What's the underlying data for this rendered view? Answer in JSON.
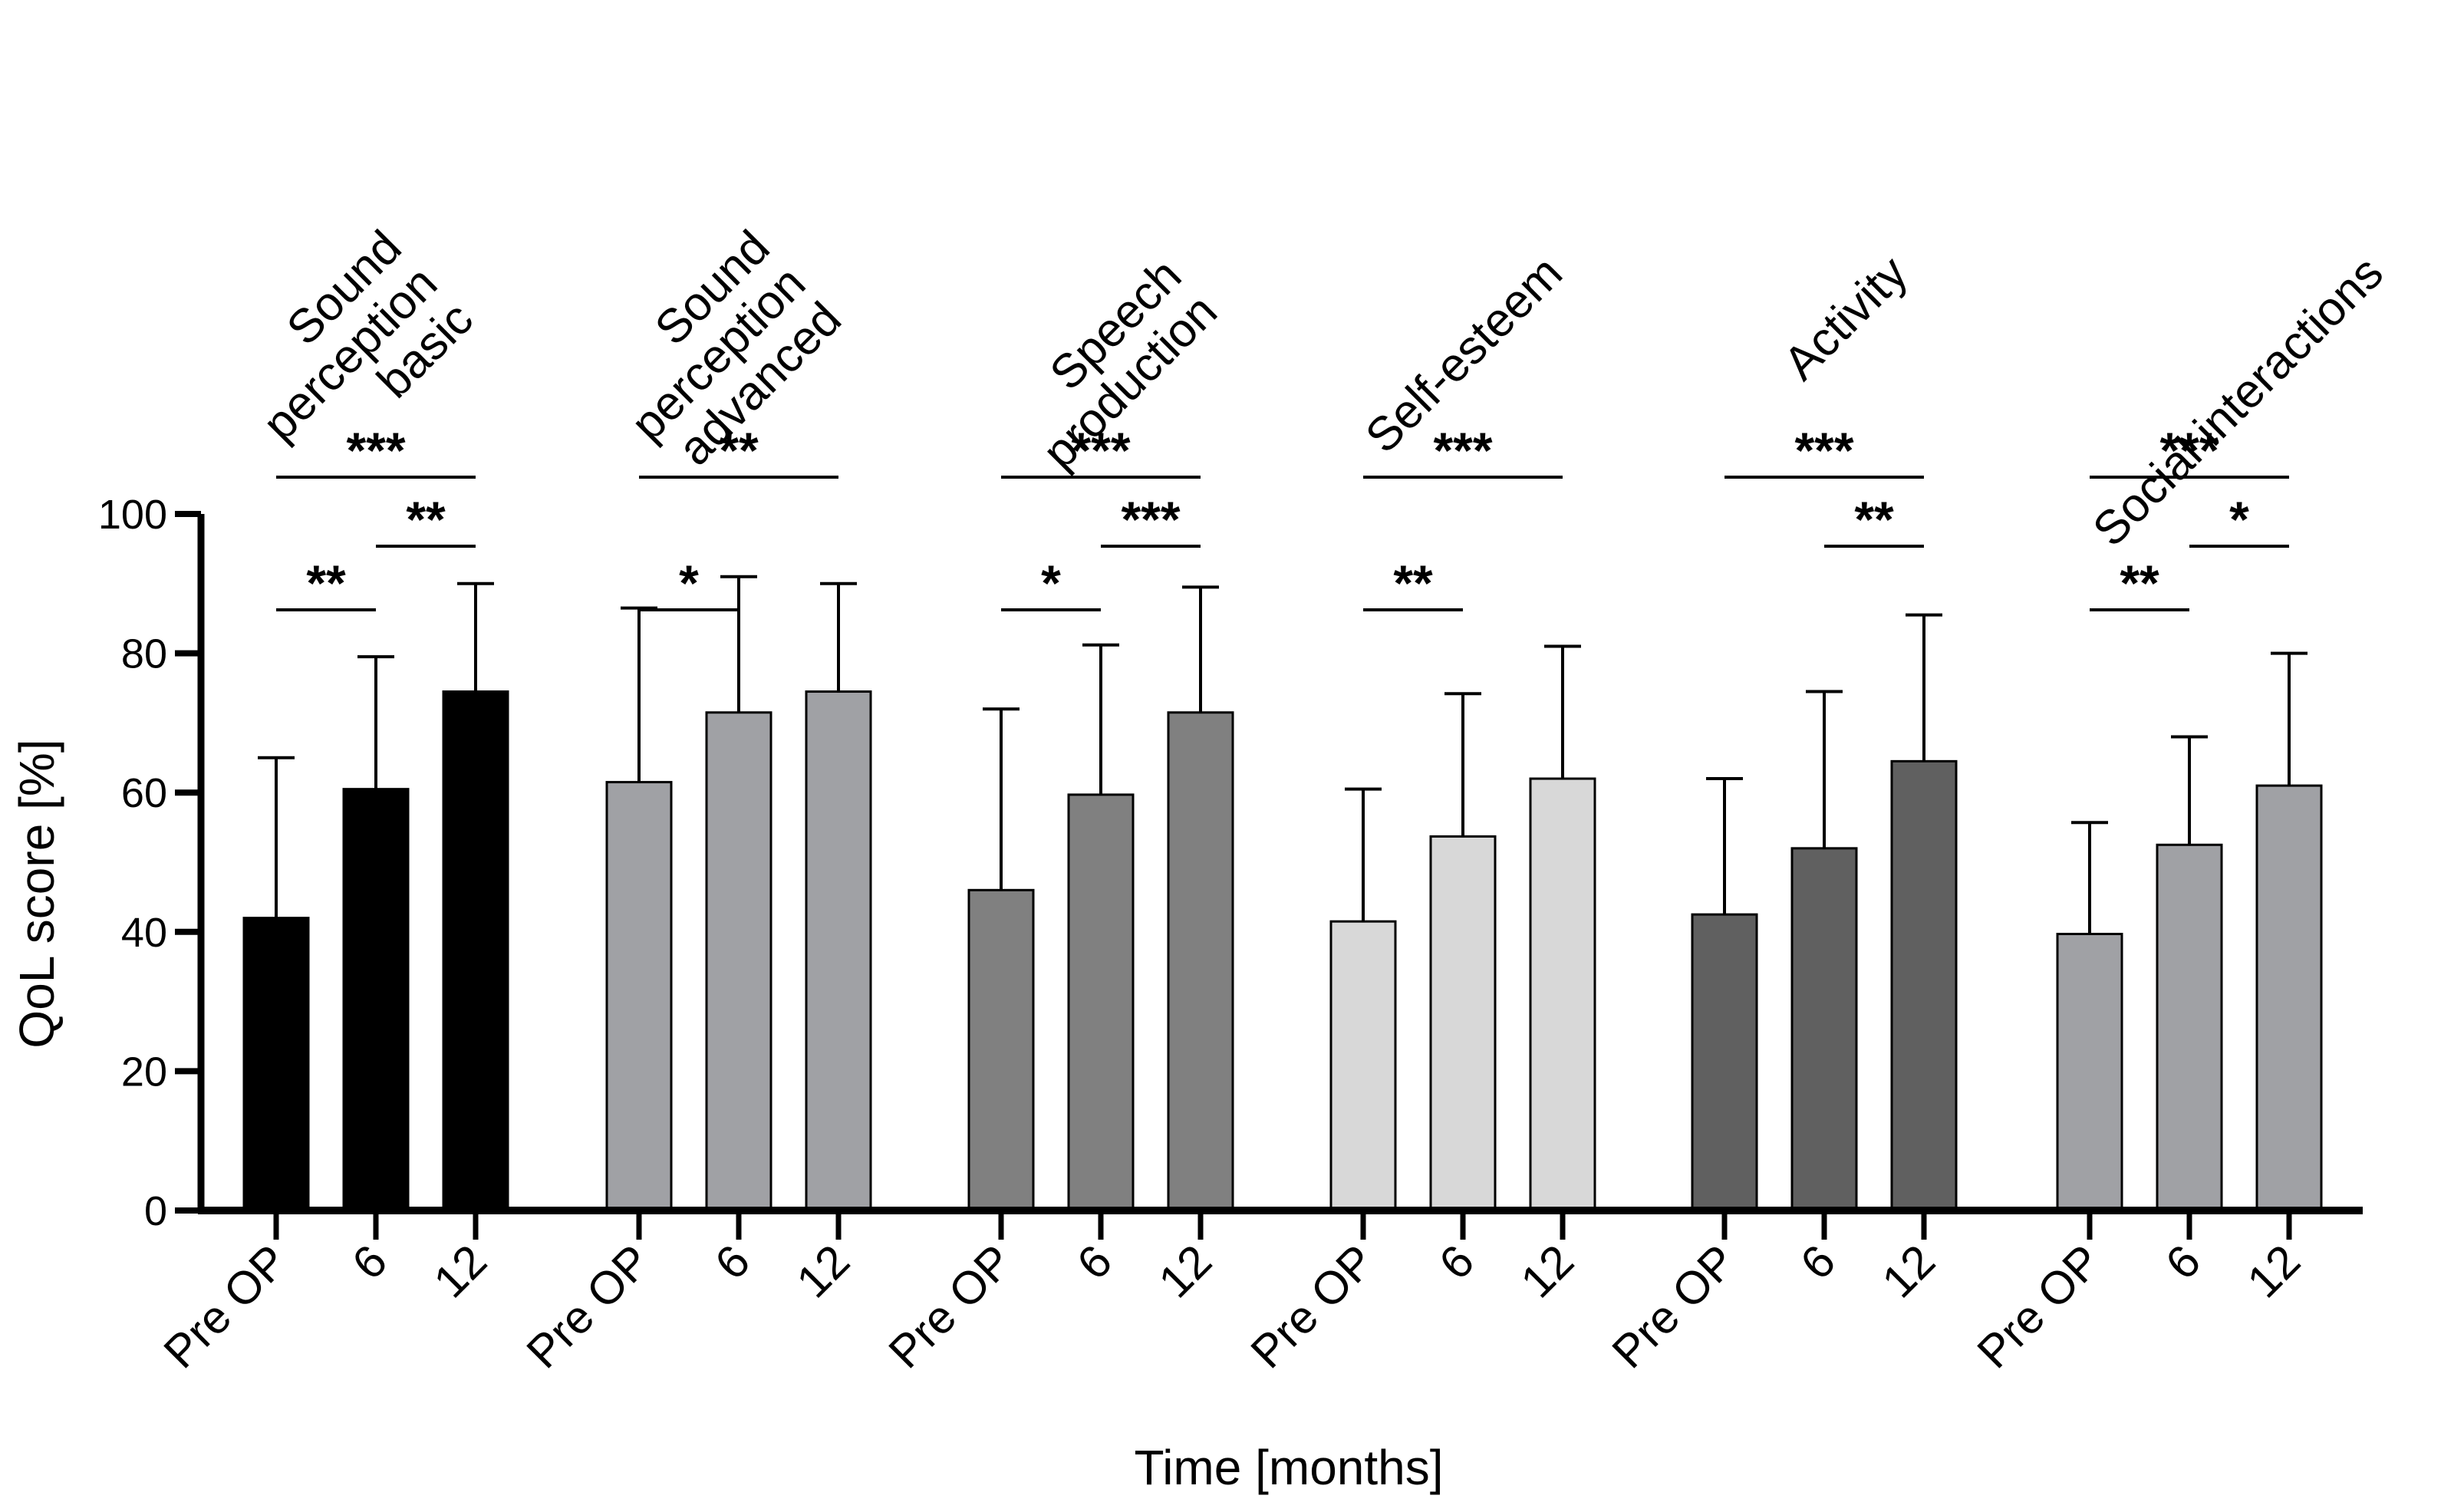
{
  "chart_data": {
    "type": "bar",
    "ylabel": "QoL score [%]",
    "xlabel": "Time [months]",
    "ylim": [
      0,
      100
    ],
    "yticks": [
      0,
      20,
      40,
      60,
      80,
      100
    ],
    "error_bars": "upper-sd",
    "categories": [
      "Pre OP",
      "6",
      "12"
    ],
    "groups": [
      {
        "label": "Sound\nperception\nbasic",
        "color": "#000000",
        "values": [
          42,
          60.5,
          74.5
        ],
        "errors": [
          23,
          19,
          15.5
        ],
        "significance": [
          {
            "from": 0,
            "to": 1,
            "label": "**"
          },
          {
            "from": 1,
            "to": 2,
            "label": "**"
          },
          {
            "from": 0,
            "to": 2,
            "label": "***"
          }
        ]
      },
      {
        "label": "Sound\nperception\nadvanced",
        "color": "#a0a1a5",
        "values": [
          61.5,
          71.5,
          74.5
        ],
        "errors": [
          25,
          19.5,
          15.5
        ],
        "significance": [
          {
            "from": 0,
            "to": 1,
            "label": "*"
          },
          {
            "from": 0,
            "to": 2,
            "label": "**"
          }
        ]
      },
      {
        "label": "Speech\nproduction",
        "color": "#808080",
        "values": [
          46,
          59.7,
          71.5
        ],
        "errors": [
          26,
          21.5,
          18
        ],
        "significance": [
          {
            "from": 0,
            "to": 1,
            "label": "*"
          },
          {
            "from": 1,
            "to": 2,
            "label": "***"
          },
          {
            "from": 0,
            "to": 2,
            "label": "***"
          }
        ]
      },
      {
        "label": "Self-esteem",
        "color": "#d8d8d8",
        "values": [
          41.5,
          53.7,
          62
        ],
        "errors": [
          19,
          20.5,
          19
        ],
        "significance": [
          {
            "from": 0,
            "to": 1,
            "label": "**"
          },
          {
            "from": 0,
            "to": 2,
            "label": "***"
          }
        ]
      },
      {
        "label": "Activity",
        "color": "#606060",
        "values": [
          42.5,
          52,
          64.5
        ],
        "errors": [
          19.5,
          22.5,
          21
        ],
        "significance": [
          {
            "from": 1,
            "to": 2,
            "label": "**"
          },
          {
            "from": 0,
            "to": 2,
            "label": "***"
          }
        ]
      },
      {
        "label": "Social interactions",
        "color": "#a0a1a5",
        "values": [
          39.7,
          52.5,
          61
        ],
        "errors": [
          16,
          15.5,
          19
        ],
        "significance": [
          {
            "from": 0,
            "to": 1,
            "label": "**"
          },
          {
            "from": 1,
            "to": 2,
            "label": "*"
          },
          {
            "from": 0,
            "to": 2,
            "label": "***"
          }
        ]
      }
    ]
  }
}
